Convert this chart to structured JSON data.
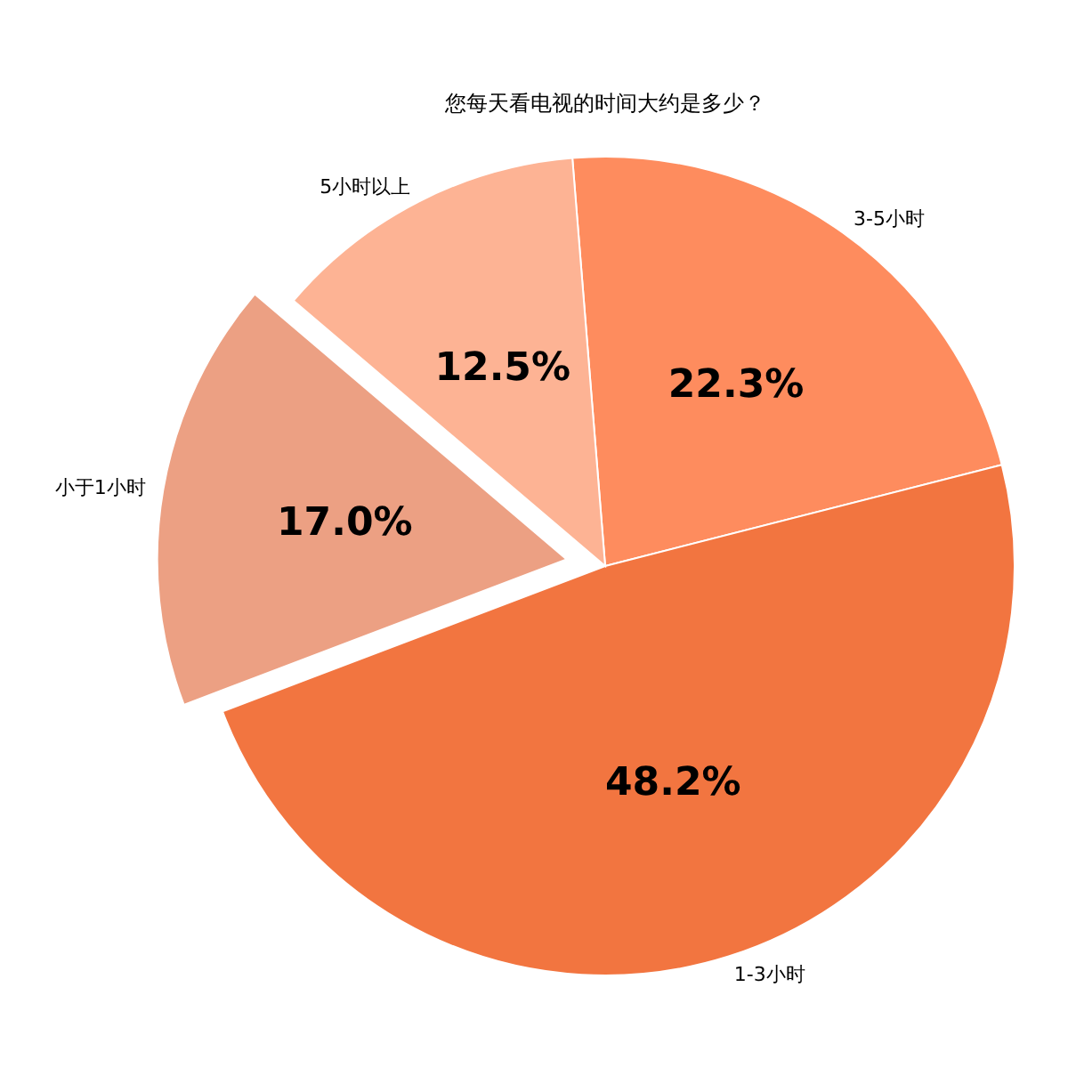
{
  "chart_data": {
    "type": "pie",
    "title": "您每天看电视的时间大约是多少？",
    "categories": [
      "3-5小时",
      "1-3小时",
      "小于1小时",
      "5小时以上"
    ],
    "values": [
      22.3,
      48.2,
      17.0,
      12.5
    ],
    "value_labels": [
      "22.3%",
      "48.2%",
      "17.0%",
      "12.5%"
    ],
    "colors": [
      "#fe8c5e",
      "#f27540",
      "#eca083",
      "#fdb394"
    ]
  }
}
